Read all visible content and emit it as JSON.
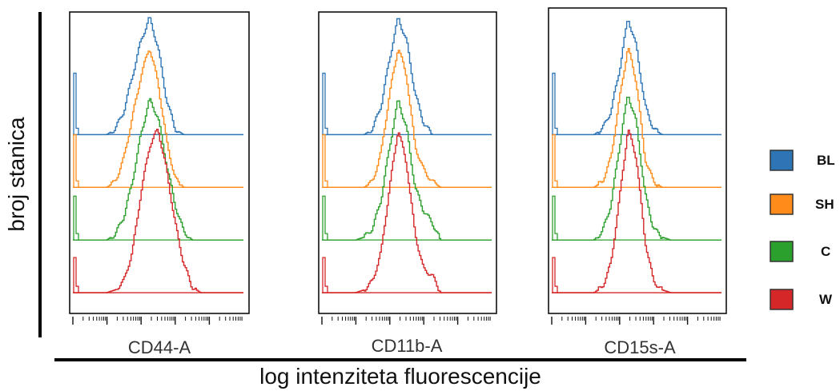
{
  "figure": {
    "ylabel": "broj stanica",
    "xlabel": "log intenziteta fluorescencije"
  },
  "legend": [
    {
      "label": "BL",
      "color": "#2e75b6"
    },
    {
      "label": "SH",
      "color": "#ff8c1a"
    },
    {
      "label": "C",
      "color": "#2ca02c"
    },
    {
      "label": "W",
      "color": "#d62728"
    }
  ],
  "chart_data": [
    {
      "type": "line",
      "title": "",
      "xlabel": "CD44-A",
      "ylabel": "broj stanica",
      "xlim": [
        0,
        1
      ],
      "ylim": [
        0,
        1
      ],
      "grid": false,
      "legend_position": "right",
      "series": [
        {
          "name": "BL",
          "color": "#2e75b6",
          "baseline": 0.6,
          "x": [
            0.0,
            0.05,
            0.1,
            0.15,
            0.2,
            0.25,
            0.3,
            0.35,
            0.4,
            0.45,
            0.5,
            0.55,
            0.6,
            0.65,
            0.7,
            0.75,
            0.8,
            0.85,
            0.9,
            0.95,
            1.0
          ],
          "y": [
            0.6,
            0.6,
            0.6,
            0.6,
            0.6,
            0.62,
            0.68,
            0.8,
            0.92,
            1.0,
            0.9,
            0.72,
            0.62,
            0.6,
            0.6,
            0.6,
            0.6,
            0.6,
            0.6,
            0.6,
            0.6
          ]
        },
        {
          "name": "SH",
          "color": "#ff8c1a",
          "baseline": 0.42,
          "x": [
            0.0,
            0.05,
            0.1,
            0.15,
            0.2,
            0.25,
            0.3,
            0.35,
            0.4,
            0.45,
            0.5,
            0.55,
            0.6,
            0.65,
            0.7,
            0.75,
            0.8,
            0.85,
            0.9,
            0.95,
            1.0
          ],
          "y": [
            0.42,
            0.42,
            0.42,
            0.42,
            0.42,
            0.44,
            0.52,
            0.66,
            0.8,
            0.9,
            0.78,
            0.58,
            0.45,
            0.42,
            0.42,
            0.42,
            0.42,
            0.42,
            0.42,
            0.42,
            0.42
          ]
        },
        {
          "name": "C",
          "color": "#2ca02c",
          "baseline": 0.24,
          "x": [
            0.0,
            0.05,
            0.1,
            0.15,
            0.2,
            0.25,
            0.3,
            0.35,
            0.4,
            0.45,
            0.5,
            0.55,
            0.6,
            0.65,
            0.7,
            0.75,
            0.8,
            0.85,
            0.9,
            0.95,
            1.0
          ],
          "y": [
            0.24,
            0.24,
            0.24,
            0.24,
            0.24,
            0.26,
            0.32,
            0.44,
            0.6,
            0.72,
            0.66,
            0.5,
            0.36,
            0.27,
            0.24,
            0.24,
            0.24,
            0.24,
            0.24,
            0.24,
            0.24
          ]
        },
        {
          "name": "W",
          "color": "#d62728",
          "baseline": 0.06,
          "x": [
            0.0,
            0.05,
            0.1,
            0.15,
            0.2,
            0.25,
            0.3,
            0.35,
            0.4,
            0.45,
            0.5,
            0.55,
            0.6,
            0.65,
            0.7,
            0.75,
            0.8,
            0.85,
            0.9,
            0.95,
            1.0
          ],
          "y": [
            0.06,
            0.06,
            0.06,
            0.06,
            0.06,
            0.07,
            0.1,
            0.2,
            0.4,
            0.56,
            0.62,
            0.48,
            0.3,
            0.16,
            0.08,
            0.06,
            0.06,
            0.06,
            0.06,
            0.06,
            0.06
          ]
        }
      ]
    },
    {
      "type": "line",
      "title": "",
      "xlabel": "CD11b-A",
      "ylabel": "broj stanica",
      "xlim": [
        0,
        1
      ],
      "ylim": [
        0,
        1
      ],
      "grid": false,
      "legend_position": "right",
      "series": [
        {
          "name": "BL",
          "color": "#2e75b6",
          "baseline": 0.6,
          "x": [
            0.0,
            0.05,
            0.1,
            0.15,
            0.2,
            0.25,
            0.3,
            0.35,
            0.4,
            0.45,
            0.5,
            0.55,
            0.6,
            0.65,
            0.7,
            0.75,
            0.8,
            0.85,
            0.9,
            0.95,
            1.0
          ],
          "y": [
            0.6,
            0.6,
            0.6,
            0.6,
            0.6,
            0.6,
            0.62,
            0.7,
            0.86,
            1.0,
            0.92,
            0.74,
            0.64,
            0.6,
            0.6,
            0.6,
            0.6,
            0.6,
            0.6,
            0.6,
            0.6
          ]
        },
        {
          "name": "SH",
          "color": "#ff8c1a",
          "baseline": 0.42,
          "x": [
            0.0,
            0.05,
            0.1,
            0.15,
            0.2,
            0.25,
            0.3,
            0.35,
            0.4,
            0.45,
            0.5,
            0.55,
            0.6,
            0.65,
            0.7,
            0.75,
            0.8,
            0.85,
            0.9,
            0.95,
            1.0
          ],
          "y": [
            0.42,
            0.42,
            0.42,
            0.42,
            0.42,
            0.42,
            0.44,
            0.54,
            0.74,
            0.9,
            0.8,
            0.56,
            0.48,
            0.44,
            0.42,
            0.42,
            0.42,
            0.42,
            0.42,
            0.42,
            0.42
          ]
        },
        {
          "name": "C",
          "color": "#2ca02c",
          "baseline": 0.24,
          "x": [
            0.0,
            0.05,
            0.1,
            0.15,
            0.2,
            0.25,
            0.3,
            0.35,
            0.4,
            0.45,
            0.5,
            0.55,
            0.6,
            0.65,
            0.7,
            0.75,
            0.8,
            0.85,
            0.9,
            0.95,
            1.0
          ],
          "y": [
            0.24,
            0.24,
            0.24,
            0.24,
            0.24,
            0.25,
            0.28,
            0.38,
            0.56,
            0.72,
            0.62,
            0.42,
            0.34,
            0.3,
            0.24,
            0.24,
            0.24,
            0.24,
            0.24,
            0.24,
            0.24
          ]
        },
        {
          "name": "W",
          "color": "#d62728",
          "baseline": 0.06,
          "x": [
            0.0,
            0.05,
            0.1,
            0.15,
            0.2,
            0.25,
            0.3,
            0.35,
            0.4,
            0.45,
            0.5,
            0.55,
            0.6,
            0.65,
            0.7,
            0.75,
            0.8,
            0.85,
            0.9,
            0.95,
            1.0
          ],
          "y": [
            0.06,
            0.06,
            0.06,
            0.06,
            0.06,
            0.07,
            0.1,
            0.2,
            0.42,
            0.62,
            0.5,
            0.26,
            0.14,
            0.12,
            0.06,
            0.06,
            0.06,
            0.06,
            0.06,
            0.06,
            0.06
          ]
        }
      ]
    },
    {
      "type": "line",
      "title": "",
      "xlabel": "CD15s-A",
      "ylabel": "broj stanica",
      "xlim": [
        0,
        1
      ],
      "ylim": [
        0,
        1
      ],
      "grid": false,
      "legend_position": "right",
      "series": [
        {
          "name": "BL",
          "color": "#2e75b6",
          "baseline": 0.6,
          "x": [
            0.0,
            0.05,
            0.1,
            0.15,
            0.2,
            0.25,
            0.3,
            0.35,
            0.4,
            0.45,
            0.5,
            0.55,
            0.6,
            0.65,
            0.7,
            0.75,
            0.8,
            0.85,
            0.9,
            0.95,
            1.0
          ],
          "y": [
            0.6,
            0.6,
            0.6,
            0.6,
            0.6,
            0.6,
            0.62,
            0.68,
            0.82,
            1.0,
            0.9,
            0.7,
            0.62,
            0.6,
            0.6,
            0.6,
            0.6,
            0.6,
            0.6,
            0.6,
            0.6
          ]
        },
        {
          "name": "SH",
          "color": "#ff8c1a",
          "baseline": 0.42,
          "x": [
            0.0,
            0.05,
            0.1,
            0.15,
            0.2,
            0.25,
            0.3,
            0.35,
            0.4,
            0.45,
            0.5,
            0.55,
            0.6,
            0.65,
            0.7,
            0.75,
            0.8,
            0.85,
            0.9,
            0.95,
            1.0
          ],
          "y": [
            0.42,
            0.42,
            0.42,
            0.42,
            0.42,
            0.42,
            0.44,
            0.52,
            0.72,
            0.9,
            0.78,
            0.52,
            0.44,
            0.42,
            0.42,
            0.42,
            0.42,
            0.42,
            0.42,
            0.42,
            0.42
          ]
        },
        {
          "name": "C",
          "color": "#2ca02c",
          "baseline": 0.24,
          "x": [
            0.0,
            0.05,
            0.1,
            0.15,
            0.2,
            0.25,
            0.3,
            0.35,
            0.4,
            0.45,
            0.5,
            0.55,
            0.6,
            0.65,
            0.7,
            0.75,
            0.8,
            0.85,
            0.9,
            0.95,
            1.0
          ],
          "y": [
            0.24,
            0.24,
            0.24,
            0.24,
            0.24,
            0.24,
            0.27,
            0.36,
            0.56,
            0.74,
            0.64,
            0.4,
            0.28,
            0.25,
            0.24,
            0.24,
            0.24,
            0.24,
            0.24,
            0.24,
            0.24
          ]
        },
        {
          "name": "W",
          "color": "#d62728",
          "baseline": 0.06,
          "x": [
            0.0,
            0.05,
            0.1,
            0.15,
            0.2,
            0.25,
            0.3,
            0.35,
            0.4,
            0.45,
            0.5,
            0.55,
            0.6,
            0.65,
            0.7,
            0.75,
            0.8,
            0.85,
            0.9,
            0.95,
            1.0
          ],
          "y": [
            0.06,
            0.06,
            0.06,
            0.06,
            0.06,
            0.06,
            0.08,
            0.16,
            0.38,
            0.62,
            0.52,
            0.24,
            0.1,
            0.07,
            0.06,
            0.06,
            0.06,
            0.06,
            0.06,
            0.06,
            0.06
          ]
        }
      ]
    }
  ]
}
